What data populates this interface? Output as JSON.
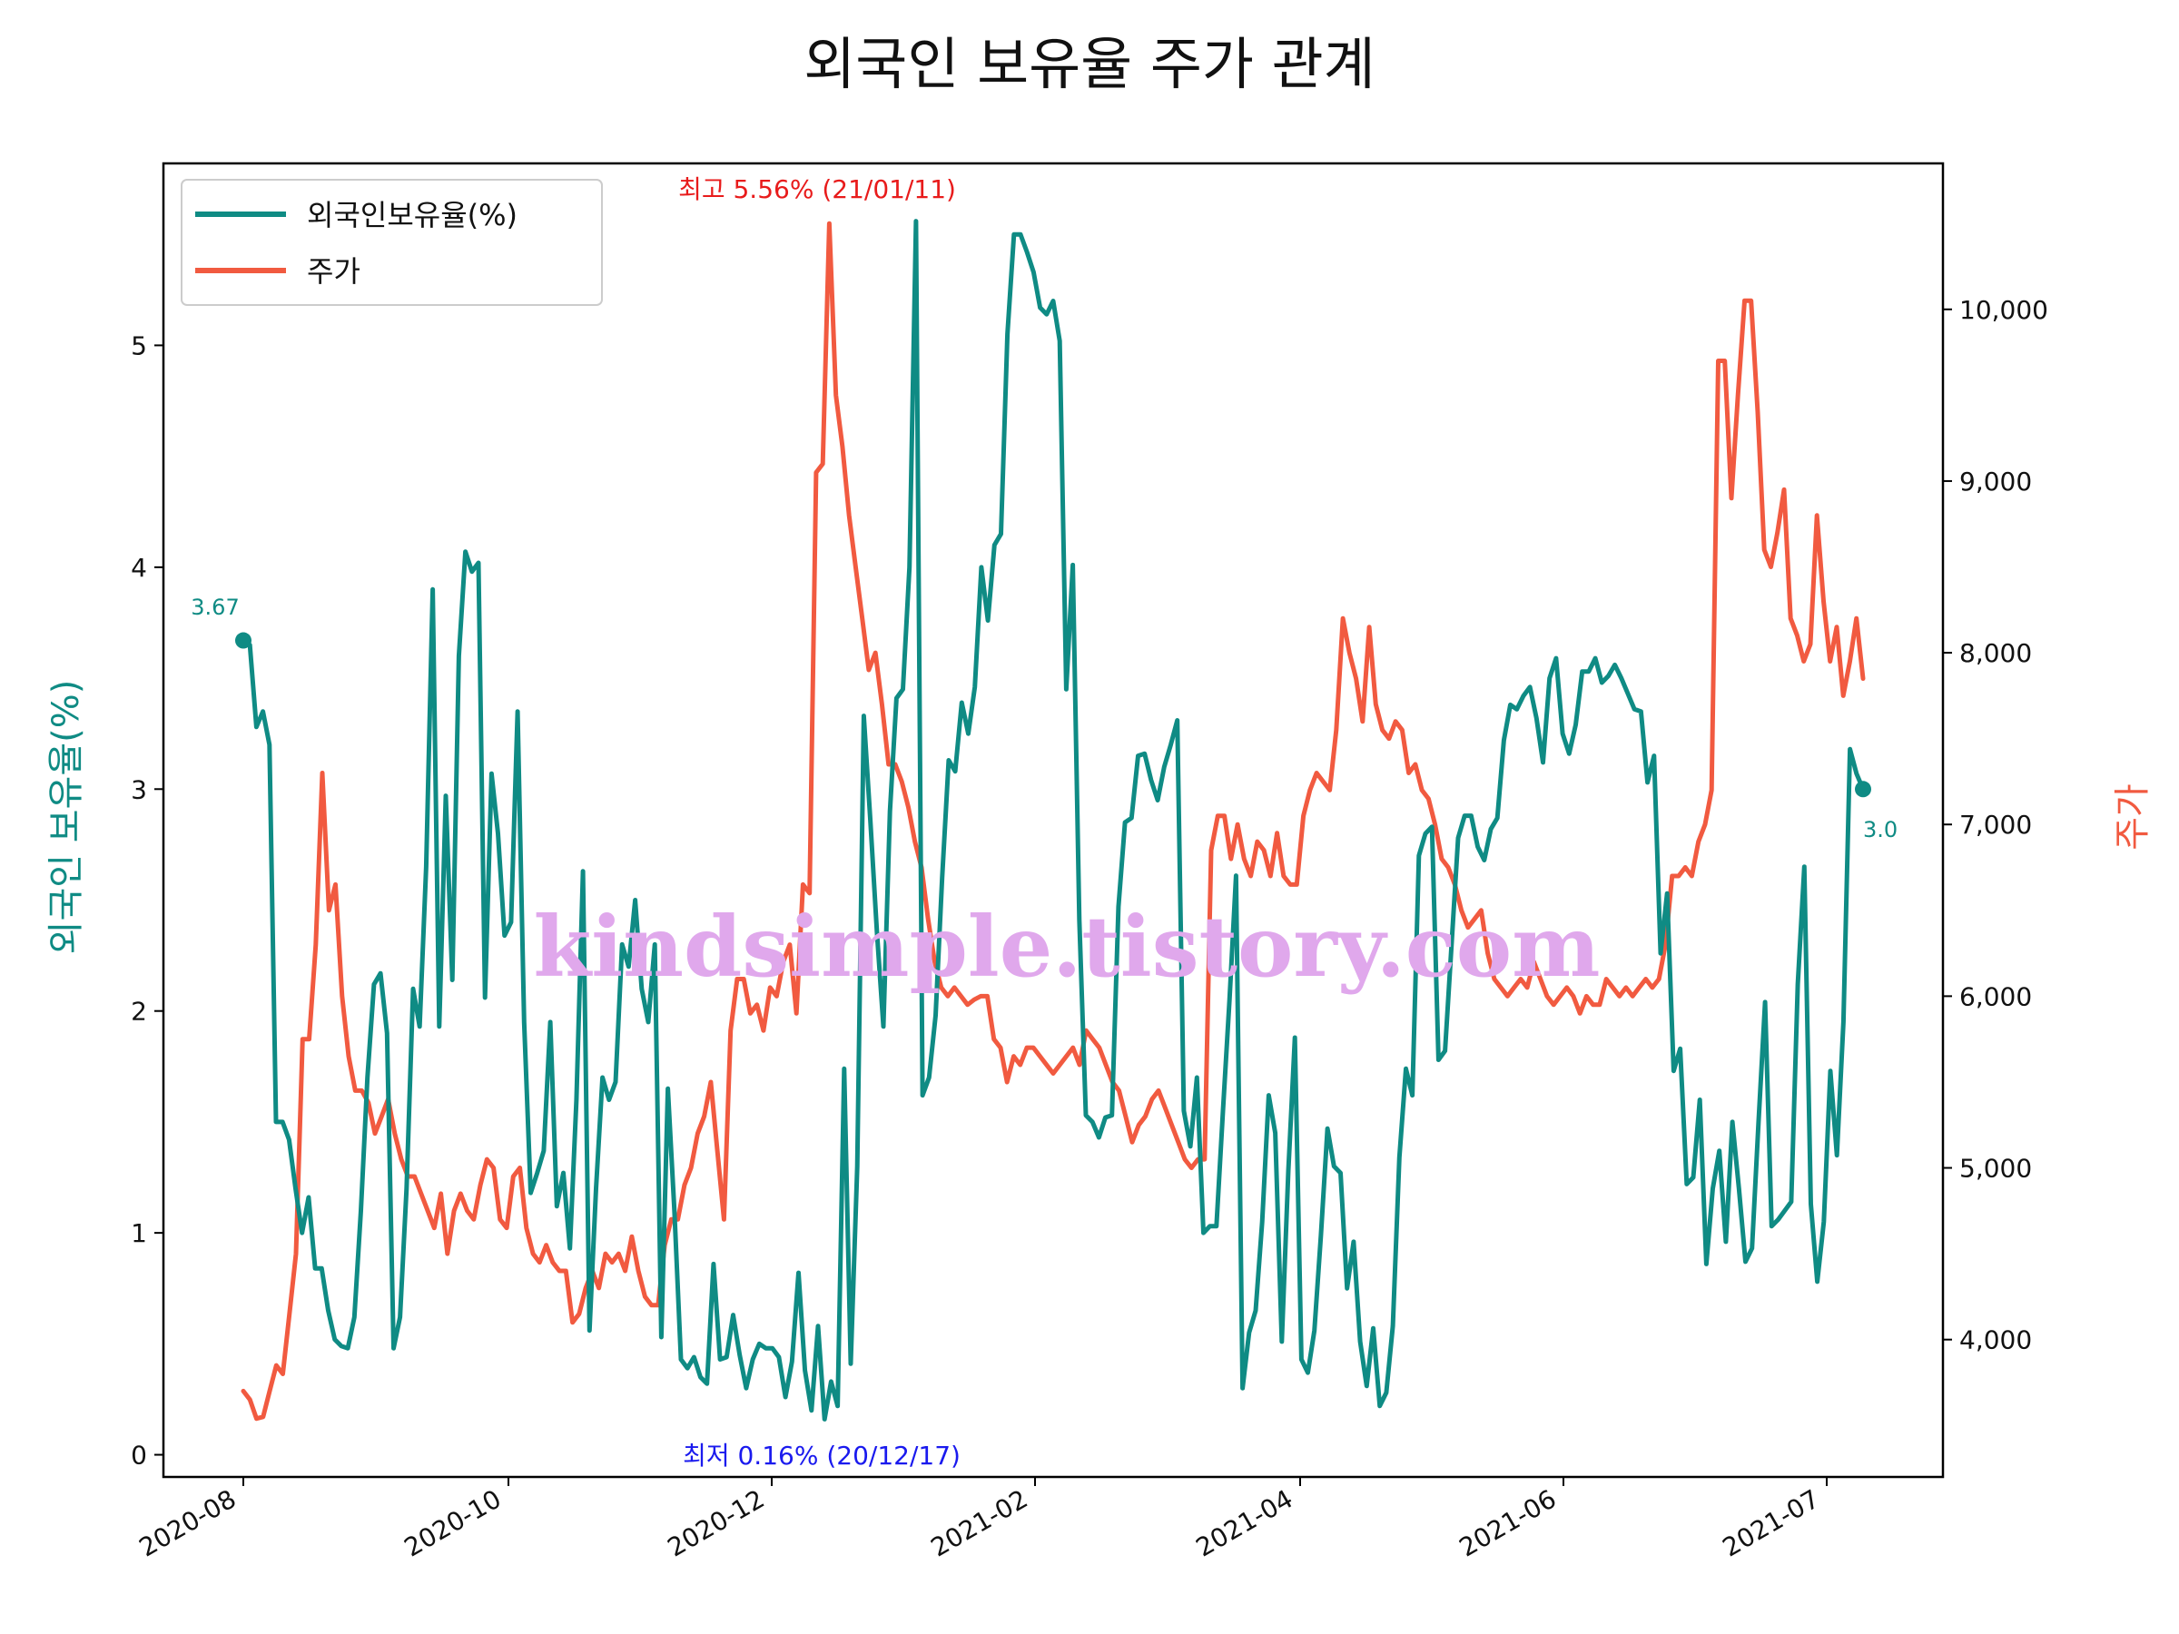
{
  "chart_data": {
    "type": "line",
    "title": "외국인 보유율 주가 관계",
    "ylabel_left": "외국인 보유율(%)",
    "ylabel_right": "주가",
    "x_tick_labels": [
      "2020-08",
      "2020-10",
      "2020-12",
      "2021-02",
      "2021-04",
      "2021-06",
      "2021-07"
    ],
    "y_left_ticks": [
      "0",
      "1",
      "2",
      "3",
      "4",
      "5"
    ],
    "y_right_ticks": [
      "4,000",
      "5,000",
      "6,000",
      "7,000",
      "8,000",
      "9,000",
      "10,000"
    ],
    "ylim_left": [
      -0.1,
      5.82
    ],
    "ylim_right": [
      3200,
      10850
    ],
    "grid": false,
    "legend_position": "top-left",
    "series": [
      {
        "name": "외국인보유율(%)",
        "color": "#0f8b84",
        "axis": "left",
        "values": [
          3.67,
          3.65,
          3.28,
          3.35,
          3.2,
          1.5,
          1.5,
          1.42,
          1.2,
          1.0,
          1.16,
          0.84,
          0.84,
          0.65,
          0.52,
          0.49,
          0.48,
          0.62,
          1.1,
          1.7,
          2.12,
          2.17,
          1.9,
          0.48,
          0.62,
          1.2,
          2.1,
          1.93,
          2.65,
          3.9,
          1.93,
          2.97,
          2.14,
          3.6,
          4.07,
          3.98,
          4.02,
          2.06,
          3.07,
          2.8,
          2.34,
          2.4,
          3.35,
          1.95,
          1.18,
          1.27,
          1.37,
          1.95,
          1.12,
          1.27,
          0.93,
          1.6,
          2.63,
          0.56,
          1.2,
          1.7,
          1.6,
          1.68,
          2.3,
          2.2,
          2.5,
          2.1,
          1.95,
          2.3,
          0.53,
          1.65,
          1.1,
          0.43,
          0.39,
          0.44,
          0.35,
          0.32,
          0.86,
          0.43,
          0.44,
          0.63,
          0.45,
          0.3,
          0.43,
          0.5,
          0.48,
          0.48,
          0.44,
          0.26,
          0.42,
          0.82,
          0.38,
          0.2,
          0.58,
          0.16,
          0.33,
          0.22,
          1.74,
          0.41,
          1.3,
          3.33,
          2.86,
          2.36,
          1.93,
          2.9,
          3.41,
          3.45,
          4.0,
          5.56,
          1.62,
          1.7,
          1.98,
          2.6,
          3.13,
          3.08,
          3.39,
          3.25,
          3.46,
          4.0,
          3.76,
          4.1,
          4.15,
          5.05,
          5.5,
          5.5,
          5.42,
          5.33,
          5.17,
          5.14,
          5.2,
          5.02,
          3.45,
          4.01,
          2.41,
          1.53,
          1.5,
          1.43,
          1.52,
          1.53,
          2.47,
          2.85,
          2.87,
          3.15,
          3.16,
          3.04,
          2.95,
          3.1,
          3.2,
          3.31,
          1.55,
          1.39,
          1.7,
          1.0,
          1.03,
          1.03,
          1.55,
          2.05,
          2.61,
          0.3,
          0.55,
          0.65,
          1.05,
          1.62,
          1.45,
          0.51,
          1.28,
          1.88,
          0.43,
          0.37,
          0.56,
          0.99,
          1.47,
          1.3,
          1.27,
          0.75,
          0.96,
          0.51,
          0.31,
          0.57,
          0.22,
          0.28,
          0.58,
          1.34,
          1.74,
          1.62,
          2.7,
          2.8,
          2.83,
          1.78,
          1.82,
          2.3,
          2.78,
          2.88,
          2.88,
          2.74,
          2.68,
          2.82,
          2.87,
          3.22,
          3.38,
          3.36,
          3.42,
          3.46,
          3.32,
          3.12,
          3.5,
          3.59,
          3.25,
          3.16,
          3.29,
          3.53,
          3.53,
          3.59,
          3.48,
          3.51,
          3.56,
          3.5,
          3.43,
          3.36,
          3.35,
          3.03,
          3.15,
          2.26,
          2.53,
          1.73,
          1.83,
          1.22,
          1.25,
          1.6,
          0.86,
          1.2,
          1.37,
          0.96,
          1.5,
          1.2,
          0.87,
          0.93,
          1.5,
          2.04,
          1.03,
          1.06,
          1.1,
          1.14,
          2.12,
          2.65,
          1.13,
          0.78,
          1.05,
          1.73,
          1.35,
          1.95,
          3.18,
          3.07,
          3.0
        ]
      },
      {
        "name": "주가",
        "color": "#f15a40",
        "axis": "right",
        "values": [
          3700,
          3650,
          3540,
          3550,
          3700,
          3850,
          3800,
          4150,
          4500,
          5750,
          5750,
          6300,
          7300,
          6500,
          6650,
          6000,
          5650,
          5450,
          5450,
          5380,
          5200,
          5300,
          5400,
          5200,
          5050,
          4950,
          4950,
          4850,
          4750,
          4650,
          4850,
          4500,
          4750,
          4850,
          4750,
          4700,
          4900,
          5050,
          5000,
          4700,
          4650,
          4950,
          5000,
          4650,
          4500,
          4450,
          4550,
          4450,
          4400,
          4400,
          4100,
          4150,
          4300,
          4400,
          4300,
          4500,
          4450,
          4500,
          4400,
          4600,
          4400,
          4250,
          4200,
          4200,
          4550,
          4700,
          4700,
          4900,
          5000,
          5200,
          5300,
          5500,
          5100,
          4700,
          5800,
          6100,
          6100,
          5900,
          5950,
          5800,
          6050,
          6000,
          6200,
          6300,
          5900,
          6650,
          6600,
          9050,
          9100,
          10500,
          9500,
          9200,
          8800,
          8500,
          8200,
          7900,
          8000,
          7700,
          7350,
          7350,
          7250,
          7100,
          6900,
          6750,
          6450,
          6200,
          6050,
          6000,
          6050,
          6000,
          5950,
          5980,
          6000,
          6000,
          5750,
          5700,
          5500,
          5650,
          5600,
          5700,
          5700,
          5650,
          5600,
          5550,
          5600,
          5650,
          5700,
          5600,
          5800,
          5750,
          5700,
          5600,
          5500,
          5450,
          5300,
          5150,
          5250,
          5300,
          5400,
          5450,
          5350,
          5250,
          5150,
          5050,
          5000,
          5050,
          5050,
          6850,
          7050,
          7050,
          6800,
          7000,
          6800,
          6700,
          6900,
          6850,
          6700,
          6950,
          6700,
          6650,
          6650,
          7050,
          7200,
          7300,
          7250,
          7200,
          7550,
          8200,
          8000,
          7850,
          7600,
          8150,
          7700,
          7550,
          7500,
          7600,
          7550,
          7300,
          7350,
          7200,
          7150,
          7000,
          6800,
          6750,
          6650,
          6500,
          6400,
          6450,
          6500,
          6250,
          6100,
          6050,
          6000,
          6050,
          6100,
          6050,
          6200,
          6100,
          6000,
          5950,
          6000,
          6050,
          6000,
          5900,
          6000,
          5950,
          5950,
          6100,
          6050,
          6000,
          6050,
          6000,
          6050,
          6100,
          6050,
          6100,
          6300,
          6700,
          6700,
          6750,
          6700,
          6900,
          7000,
          7200,
          9700,
          9700,
          8900,
          9500,
          10050,
          10050,
          9400,
          8600,
          8500,
          8700,
          8950,
          8200,
          8100,
          7950,
          8050,
          8800,
          8300,
          7950,
          8150,
          7750,
          7950,
          8200,
          7850
        ]
      }
    ],
    "annotations": {
      "max": "최고 5.56% (21/01/11)",
      "min": "최저 0.16% (20/12/17)",
      "start": "3.67",
      "end": "3.0"
    },
    "watermark": "kindsimple.tistory.com"
  }
}
